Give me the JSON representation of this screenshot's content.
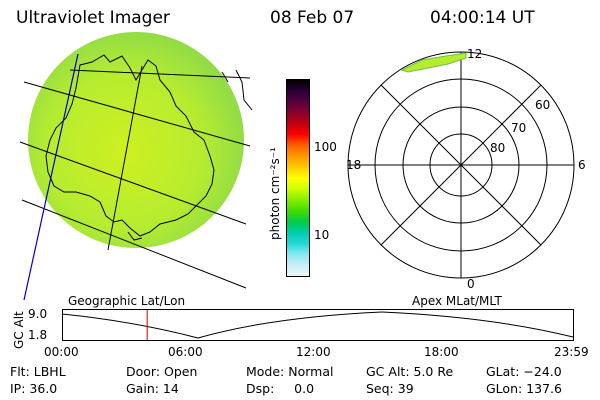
{
  "header": {
    "instrument": "Ultraviolet Imager",
    "date": "08 Feb 07",
    "time": "04:00:14 UT"
  },
  "globe": {
    "label": "Geographic Lat/Lon"
  },
  "colorbar": {
    "label": "photon cm⁻²s⁻¹",
    "ticks": [
      "100",
      "10"
    ],
    "colors": [
      "#000000",
      "#2a0034",
      "#550040",
      "#880030",
      "#c00010",
      "#ff0000",
      "#ff6000",
      "#ff9900",
      "#ffcc00",
      "#ffff00",
      "#ccff00",
      "#88ee00",
      "#44dd00",
      "#00cc44",
      "#00ccaa",
      "#22d8d8",
      "#88e8f0",
      "#c8eef8",
      "#eef6f8"
    ]
  },
  "polar": {
    "label": "Apex MLat/MLT",
    "mlt_labels": [
      "12",
      "18",
      "6",
      "0"
    ],
    "lat_labels": [
      "60",
      "70",
      "80"
    ]
  },
  "timeline": {
    "ylabel": "GC Alt",
    "y_ticks": [
      "9.0",
      "1.8"
    ],
    "x_ticks": [
      "00:00",
      "06:00",
      "12:00",
      "18:00",
      "23:59"
    ],
    "current_time_hours": 4.0
  },
  "status": {
    "flt": "Flt: LBHL",
    "ip": "IP: 36.0",
    "door": "Door: Open",
    "gain": "Gain: 14",
    "mode": "Mode: Normal",
    "dsp": "Dsp:     0.0",
    "gcalt": "GC Alt: 5.0 Re",
    "seq": "Seq: 39",
    "glat": "GLat: −24.0",
    "glon": "GLon: 137.6"
  }
}
